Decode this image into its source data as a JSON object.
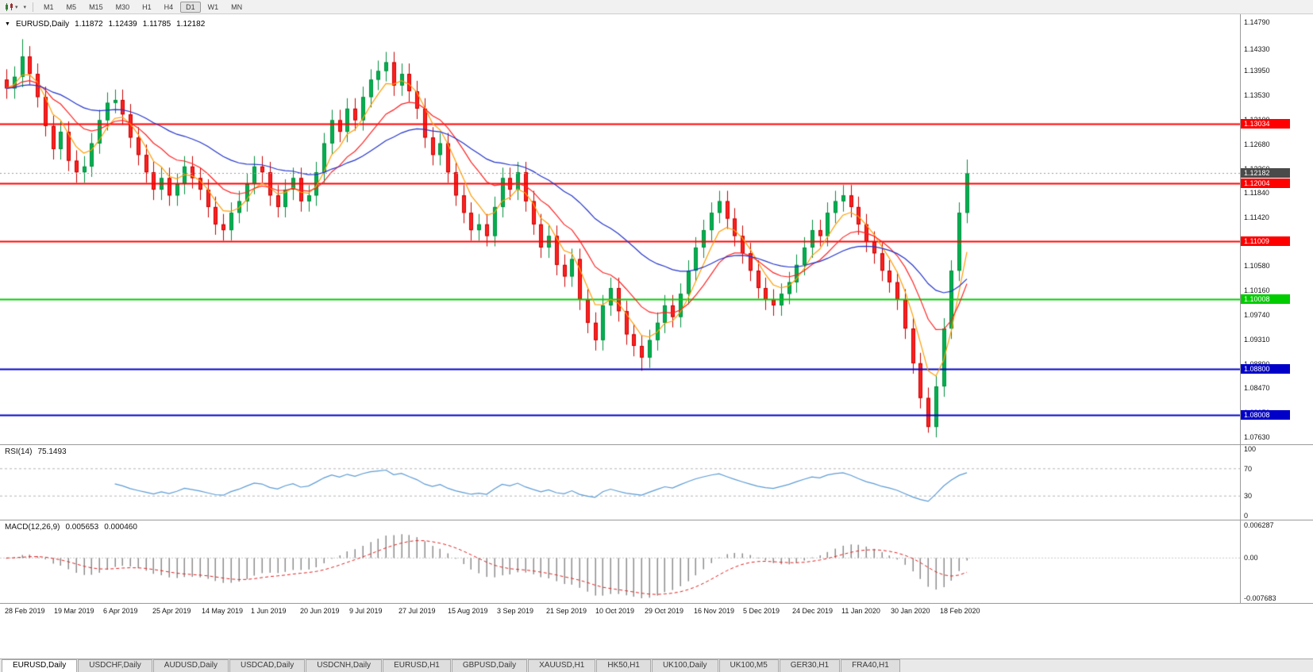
{
  "toolbar": {
    "icons": {
      "chart_style_icon": "candlestick-chart",
      "caret_glyph": "▾"
    },
    "timeframes": [
      {
        "label": "M1"
      },
      {
        "label": "M5"
      },
      {
        "label": "M15"
      },
      {
        "label": "M30"
      },
      {
        "label": "H1"
      },
      {
        "label": "H4"
      },
      {
        "label": "D1",
        "active": true
      },
      {
        "label": "W1"
      },
      {
        "label": "MN"
      }
    ]
  },
  "chart": {
    "header": {
      "marker": "▼",
      "symbol": "EURUSD,Daily",
      "open": "1.11872",
      "high": "1.12439",
      "low": "1.11785",
      "close": "1.12182"
    },
    "price_axis": {
      "labels": [
        "1.14790",
        "1.14330",
        "1.13950",
        "1.13530",
        "1.13100",
        "1.12680",
        "1.12260",
        "1.11840",
        "1.11420",
        "1.11000",
        "1.10580",
        "1.10160",
        "1.09740",
        "1.09310",
        "1.08890",
        "1.08470",
        "1.08050",
        "1.07630"
      ]
    },
    "date_axis": [
      "28 Feb 2019",
      "19 Mar 2019",
      "6 Apr 2019",
      "25 Apr 2019",
      "14 May 2019",
      "1 Jun 2019",
      "20 Jun 2019",
      "9 Jul 2019",
      "27 Jul 2019",
      "15 Aug 2019",
      "3 Sep 2019",
      "21 Sep 2019",
      "10 Oct 2019",
      "29 Oct 2019",
      "16 Nov 2019",
      "5 Dec 2019",
      "24 Dec 2019",
      "11 Jan 2020",
      "30 Jan 2020",
      "18 Feb 2020"
    ]
  },
  "rsi_pane": {
    "title": "RSI(14)",
    "value": "75.1493"
  },
  "macd_pane": {
    "title": "MACD(12,26,9)",
    "main_value": "0.005653",
    "signal_value": "0.000460"
  },
  "tabs": [
    {
      "label": "EURUSD,Daily",
      "active": true
    },
    {
      "label": "USDCHF,Daily"
    },
    {
      "label": "AUDUSD,Daily"
    },
    {
      "label": "USDCAD,Daily"
    },
    {
      "label": "USDCNH,Daily"
    },
    {
      "label": "EURUSD,H1"
    },
    {
      "label": "GBPUSD,Daily"
    },
    {
      "label": "XAUUSD,H1"
    },
    {
      "label": "HK50,H1"
    },
    {
      "label": "UK100,Daily"
    },
    {
      "label": "UK100,M5"
    },
    {
      "label": "GER30,H1"
    },
    {
      "label": "FRA40,H1"
    }
  ],
  "chart_data": {
    "type": "candlestick",
    "symbol": "EURUSD",
    "timeframe": "Daily",
    "ohlc_display": {
      "open": 1.11872,
      "high": 1.12439,
      "low": 1.11785,
      "close": 1.12182
    },
    "ylim": [
      1.075,
      1.1493
    ],
    "up_color": "#00b050",
    "up_edge": "#008f3c",
    "down_color": "#ff2020",
    "down_edge": "#c80000",
    "candles": [
      [
        1.138,
        1.1398,
        1.1347,
        1.1365
      ],
      [
        1.1365,
        1.1403,
        1.1347,
        1.1385
      ],
      [
        1.1385,
        1.145,
        1.1367,
        1.142
      ],
      [
        1.142,
        1.1438,
        1.1372,
        1.139
      ],
      [
        1.139,
        1.1408,
        1.1332,
        1.135
      ],
      [
        1.135,
        1.1368,
        1.1282,
        1.13
      ],
      [
        1.13,
        1.1318,
        1.1242,
        1.126
      ],
      [
        1.126,
        1.1308,
        1.1242,
        1.129
      ],
      [
        1.129,
        1.1308,
        1.1222,
        1.124
      ],
      [
        1.124,
        1.1258,
        1.1202,
        1.122
      ],
      [
        1.122,
        1.1248,
        1.1202,
        1.123
      ],
      [
        1.123,
        1.1288,
        1.1212,
        1.127
      ],
      [
        1.127,
        1.1328,
        1.1252,
        1.131
      ],
      [
        1.131,
        1.1358,
        1.1292,
        1.134
      ],
      [
        1.134,
        1.1363,
        1.1322,
        1.1345
      ],
      [
        1.1345,
        1.1363,
        1.1302,
        1.132
      ],
      [
        1.132,
        1.1338,
        1.1262,
        1.128
      ],
      [
        1.128,
        1.1298,
        1.1232,
        1.125
      ],
      [
        1.125,
        1.1268,
        1.1202,
        1.122
      ],
      [
        1.122,
        1.1238,
        1.1172,
        1.119
      ],
      [
        1.119,
        1.1228,
        1.1172,
        1.121
      ],
      [
        1.121,
        1.1228,
        1.1162,
        1.118
      ],
      [
        1.118,
        1.1218,
        1.1162,
        1.12
      ],
      [
        1.12,
        1.1248,
        1.1182,
        1.123
      ],
      [
        1.123,
        1.1248,
        1.1192,
        1.121
      ],
      [
        1.121,
        1.1228,
        1.1172,
        1.119
      ],
      [
        1.119,
        1.1208,
        1.1142,
        1.116
      ],
      [
        1.116,
        1.1178,
        1.1112,
        1.113
      ],
      [
        1.113,
        1.1148,
        1.1102,
        1.112
      ],
      [
        1.112,
        1.1168,
        1.1102,
        1.115
      ],
      [
        1.115,
        1.1188,
        1.1132,
        1.117
      ],
      [
        1.117,
        1.1218,
        1.1152,
        1.12
      ],
      [
        1.12,
        1.1248,
        1.1182,
        1.123
      ],
      [
        1.123,
        1.1248,
        1.1202,
        1.122
      ],
      [
        1.122,
        1.1238,
        1.1162,
        1.118
      ],
      [
        1.118,
        1.1198,
        1.1142,
        1.116
      ],
      [
        1.116,
        1.1208,
        1.1142,
        1.119
      ],
      [
        1.119,
        1.1228,
        1.1172,
        1.121
      ],
      [
        1.121,
        1.1228,
        1.1152,
        1.117
      ],
      [
        1.117,
        1.1198,
        1.1152,
        1.118
      ],
      [
        1.118,
        1.1238,
        1.1162,
        1.122
      ],
      [
        1.122,
        1.1288,
        1.1202,
        1.127
      ],
      [
        1.127,
        1.1328,
        1.1252,
        1.131
      ],
      [
        1.131,
        1.1328,
        1.1272,
        1.129
      ],
      [
        1.129,
        1.1348,
        1.1272,
        1.133
      ],
      [
        1.133,
        1.1348,
        1.1292,
        1.131
      ],
      [
        1.131,
        1.1368,
        1.1292,
        1.135
      ],
      [
        1.135,
        1.1398,
        1.1332,
        1.138
      ],
      [
        1.138,
        1.1413,
        1.1362,
        1.1395
      ],
      [
        1.1395,
        1.1428,
        1.1377,
        1.141
      ],
      [
        1.141,
        1.1428,
        1.1352,
        1.137
      ],
      [
        1.137,
        1.1408,
        1.1352,
        1.139
      ],
      [
        1.139,
        1.1408,
        1.1342,
        1.136
      ],
      [
        1.136,
        1.1378,
        1.1312,
        1.133
      ],
      [
        1.133,
        1.1348,
        1.1262,
        1.128
      ],
      [
        1.128,
        1.1298,
        1.1232,
        1.125
      ],
      [
        1.125,
        1.1288,
        1.1232,
        1.127
      ],
      [
        1.127,
        1.1288,
        1.1202,
        1.122
      ],
      [
        1.122,
        1.1238,
        1.1162,
        1.118
      ],
      [
        1.118,
        1.1198,
        1.1132,
        1.115
      ],
      [
        1.115,
        1.1168,
        1.1102,
        1.112
      ],
      [
        1.112,
        1.1148,
        1.1102,
        1.113
      ],
      [
        1.113,
        1.1148,
        1.1092,
        1.111
      ],
      [
        1.111,
        1.1178,
        1.1092,
        1.116
      ],
      [
        1.116,
        1.1228,
        1.1142,
        1.121
      ],
      [
        1.121,
        1.1228,
        1.1172,
        1.119
      ],
      [
        1.119,
        1.1238,
        1.1172,
        1.122
      ],
      [
        1.122,
        1.1238,
        1.1152,
        1.117
      ],
      [
        1.117,
        1.1188,
        1.1112,
        1.113
      ],
      [
        1.113,
        1.1148,
        1.1072,
        1.109
      ],
      [
        1.109,
        1.1128,
        1.1072,
        1.111
      ],
      [
        1.111,
        1.1128,
        1.1042,
        1.106
      ],
      [
        1.106,
        1.1078,
        1.1022,
        1.104
      ],
      [
        1.104,
        1.1088,
        1.1022,
        1.107
      ],
      [
        1.107,
        1.1088,
        1.0982,
        1.1
      ],
      [
        1.1,
        1.1018,
        1.0942,
        1.096
      ],
      [
        1.096,
        1.0978,
        1.0912,
        1.093
      ],
      [
        1.093,
        1.1008,
        1.0912,
        1.099
      ],
      [
        1.099,
        1.1038,
        1.0972,
        1.102
      ],
      [
        1.102,
        1.1038,
        1.0962,
        1.098
      ],
      [
        1.098,
        1.0998,
        1.0922,
        1.094
      ],
      [
        1.094,
        1.0958,
        1.0902,
        1.092
      ],
      [
        1.092,
        1.0938,
        1.0877,
        1.09
      ],
      [
        1.09,
        1.0948,
        1.0882,
        1.093
      ],
      [
        1.093,
        1.0978,
        1.0912,
        1.096
      ],
      [
        1.096,
        1.1008,
        1.0942,
        1.099
      ],
      [
        1.099,
        1.1008,
        1.0952,
        1.097
      ],
      [
        1.097,
        1.1028,
        1.0952,
        1.101
      ],
      [
        1.101,
        1.1068,
        1.0992,
        1.105
      ],
      [
        1.105,
        1.1108,
        1.1032,
        1.109
      ],
      [
        1.109,
        1.1138,
        1.1072,
        1.112
      ],
      [
        1.112,
        1.1168,
        1.1102,
        1.115
      ],
      [
        1.115,
        1.1188,
        1.1132,
        1.117
      ],
      [
        1.117,
        1.1188,
        1.1122,
        1.114
      ],
      [
        1.114,
        1.1158,
        1.1092,
        1.111
      ],
      [
        1.111,
        1.1128,
        1.1062,
        1.108
      ],
      [
        1.108,
        1.1098,
        1.1032,
        1.105
      ],
      [
        1.105,
        1.1068,
        1.1002,
        1.102
      ],
      [
        1.102,
        1.1038,
        1.0982,
        1.1
      ],
      [
        1.1,
        1.1018,
        1.0972,
        1.099
      ],
      [
        1.099,
        1.1028,
        1.0972,
        1.101
      ],
      [
        1.101,
        1.1048,
        1.0992,
        1.103
      ],
      [
        1.103,
        1.1078,
        1.1012,
        1.106
      ],
      [
        1.106,
        1.1108,
        1.1042,
        1.109
      ],
      [
        1.109,
        1.1138,
        1.1072,
        1.112
      ],
      [
        1.112,
        1.1138,
        1.1092,
        1.111
      ],
      [
        1.111,
        1.1168,
        1.1092,
        1.115
      ],
      [
        1.115,
        1.1188,
        1.1132,
        1.117
      ],
      [
        1.117,
        1.1198,
        1.1152,
        1.118
      ],
      [
        1.118,
        1.1198,
        1.1142,
        1.116
      ],
      [
        1.116,
        1.1178,
        1.1112,
        1.113
      ],
      [
        1.113,
        1.1148,
        1.1082,
        1.11
      ],
      [
        1.11,
        1.1118,
        1.1062,
        1.108
      ],
      [
        1.108,
        1.1098,
        1.1032,
        1.105
      ],
      [
        1.105,
        1.1068,
        1.1012,
        1.103
      ],
      [
        1.103,
        1.1048,
        1.0982,
        1.1
      ],
      [
        1.1,
        1.1018,
        1.0932,
        1.095
      ],
      [
        1.095,
        1.0968,
        1.0872,
        1.089
      ],
      [
        1.089,
        1.0908,
        1.0812,
        1.083
      ],
      [
        1.083,
        1.0848,
        1.077,
        1.078
      ],
      [
        1.078,
        1.0868,
        1.0762,
        1.085
      ],
      [
        1.085,
        1.0968,
        1.0832,
        1.095
      ],
      [
        1.095,
        1.1068,
        1.0932,
        1.105
      ],
      [
        1.105,
        1.1168,
        1.1032,
        1.115
      ],
      [
        1.115,
        1.1242,
        1.1132,
        1.1218
      ]
    ],
    "moving_averages": [
      {
        "period": 5,
        "method": "ema",
        "color": "#ff9c00"
      },
      {
        "period": 12,
        "method": "ema",
        "color": "#ff2020"
      },
      {
        "period": 30,
        "method": "ema",
        "color": "#2233cc"
      }
    ],
    "hlines": [
      {
        "value": 1.13034,
        "label": "1.13034",
        "color": "#ff0000",
        "width": 2
      },
      {
        "value": 1.12004,
        "label": "1.12004",
        "color": "#ff0000",
        "width": 2
      },
      {
        "value": 1.11009,
        "label": "1.11009",
        "color": "#ff0000",
        "width": 2
      },
      {
        "value": 1.10008,
        "label": "1.10008",
        "color": "#00cc00",
        "width": 2
      },
      {
        "value": 1.088,
        "label": "1.08800",
        "color": "#0000c8",
        "width": 2
      },
      {
        "value": 1.08008,
        "label": "1.08008",
        "color": "#0000c8",
        "width": 2
      }
    ],
    "current_price": {
      "value": 1.12182,
      "label": "1.12182",
      "line_color": "#9c9c9c",
      "tag_bg": "#4a4a4a"
    },
    "rsi": {
      "period": 14,
      "line_color": "#5b9bd5",
      "level_line_color": "#b4b4b4",
      "levels": [
        {
          "label": "100",
          "value": 100
        },
        {
          "label": "70",
          "value": 70
        },
        {
          "label": "30",
          "value": 30
        },
        {
          "label": "0",
          "value": 0
        }
      ]
    },
    "macd": {
      "fast": 12,
      "slow": 26,
      "signal": 9,
      "histogram_color": "#8c8c8c",
      "signal_color": "#e02020",
      "axis": [
        {
          "label": "0.006287",
          "value": 0.006287
        },
        {
          "label": "0.00",
          "value": 0
        },
        {
          "label": "-0.007683",
          "value": -0.007683
        }
      ]
    }
  }
}
